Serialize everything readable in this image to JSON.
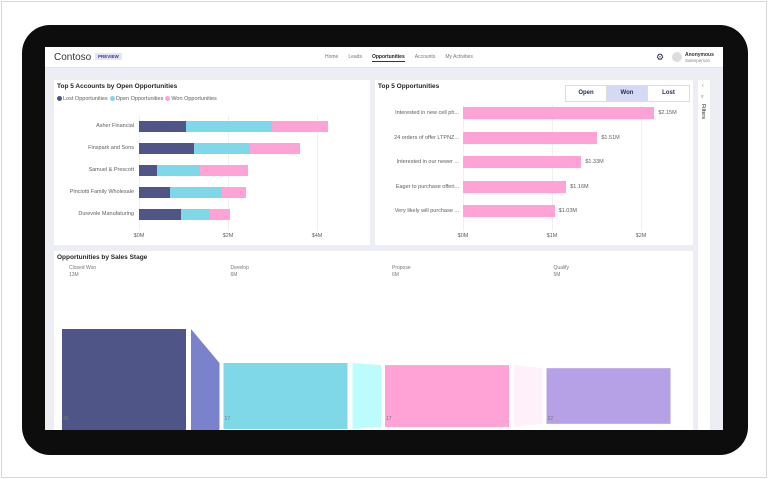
{
  "header": {
    "logo": "Contoso",
    "badge": "PREVIEW",
    "nav": [
      "Home",
      "Leads",
      "Opportunities",
      "Accounts",
      "My Activities"
    ],
    "active": "Opportunities",
    "user_name": "Anonymous",
    "user_role": "Salesperson"
  },
  "accounts_chart": {
    "title": "Top 5 Accounts by Open Opportunities",
    "type": "bar",
    "stacked": true,
    "orientation": "horizontal",
    "categories": [
      "Asher Financial",
      "Finspark and Sons",
      "Samuel & Prescott",
      "Pinciotti Family Wholesale",
      "Durevole Manufaturing"
    ],
    "series": [
      {
        "name": "Lost Opportunities",
        "color": "#4f5586",
        "values": [
          1.06,
          1.24,
          0.4,
          0.7,
          0.94
        ]
      },
      {
        "name": "Open Opportunities",
        "color": "#7fd8e8",
        "values": [
          1.93,
          1.26,
          0.97,
          1.17,
          0.65
        ]
      },
      {
        "name": "Won Opportunities",
        "color": "#ffa3d6",
        "values": [
          1.26,
          1.12,
          1.08,
          0.54,
          0.45
        ]
      }
    ],
    "xticks": [
      "$0M",
      "$2M",
      "$4M"
    ],
    "xlim": [
      0,
      4.8
    ]
  },
  "top5_chart": {
    "title": "Top 5 Opportunities",
    "type": "bar",
    "orientation": "horizontal",
    "color": "#ffa3d6",
    "toggle": [
      "Open",
      "Won",
      "Lost"
    ],
    "toggle_selected": "Won",
    "categories": [
      "Interested in new cell ph...",
      "24 orders of offer LTPNZ...",
      "Interested in our newer ...",
      "Eager to purchase offeri...",
      "Very likely will purchase ..."
    ],
    "values": [
      2.15,
      1.51,
      1.33,
      1.16,
      1.03
    ],
    "labels": [
      "$2.15M",
      "$1.51M",
      "$1.33M",
      "$1.16M",
      "$1.03M"
    ],
    "xticks": [
      "$0M",
      "$1M",
      "$2M"
    ],
    "xlim": [
      0,
      2.4
    ]
  },
  "funnel": {
    "title": "Opportunities by Sales Stage",
    "stages": [
      {
        "name": "Closed Won",
        "value_label": "13M",
        "value": 13,
        "count": "46",
        "color": "#4f5586",
        "conn": "#7a82cc"
      },
      {
        "name": "Develop",
        "value_label": "6M",
        "value": 6.4,
        "count": "17",
        "color": "#7fd8e8",
        "conn": "#bdfcfc"
      },
      {
        "name": "Propose",
        "value_label": "6M",
        "value": 6,
        "count": "17",
        "color": "#ffa3d6",
        "conn": "#fff0fa"
      },
      {
        "name": "Qualify",
        "value_label": "5M",
        "value": 5.4,
        "count": "22",
        "color": "#b6a0e6"
      }
    ]
  },
  "filters_label": "Filters"
}
